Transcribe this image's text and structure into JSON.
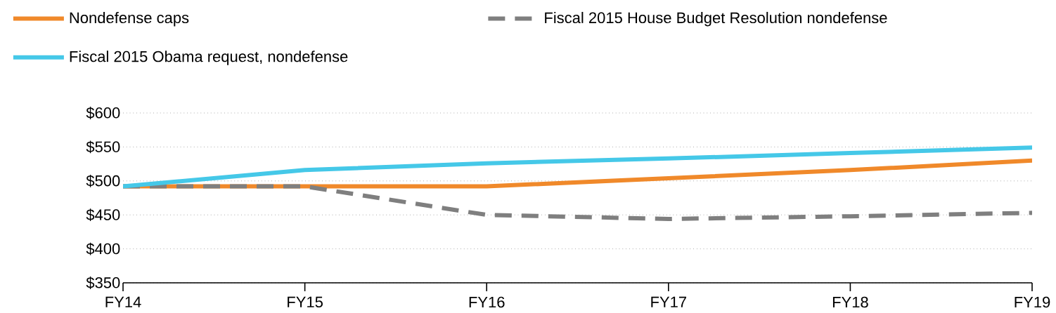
{
  "chart_data": {
    "type": "line",
    "categories": [
      "FY14",
      "FY15",
      "FY16",
      "FY17",
      "FY18",
      "FY19"
    ],
    "series": [
      {
        "name": "Nondefense caps",
        "color": "#f0892a",
        "line_style": "solid",
        "values": [
          492,
          492,
          492,
          504,
          516,
          530
        ]
      },
      {
        "name": "Fiscal 2015 House Budget Resolution nondefense",
        "color": "#7f7f7f",
        "line_style": "dashed",
        "values": [
          492,
          492,
          450,
          444,
          448,
          453
        ]
      },
      {
        "name": "Fiscal 2015 Obama request, nondefense",
        "color": "#45c8e8",
        "line_style": "solid",
        "values": [
          492,
          516,
          526,
          533,
          541,
          549
        ]
      }
    ],
    "ylim": [
      350,
      600
    ],
    "yticks": [
      {
        "value": 350,
        "label": "$350"
      },
      {
        "value": 400,
        "label": "$400"
      },
      {
        "value": 450,
        "label": "$450"
      },
      {
        "value": 500,
        "label": "$500"
      },
      {
        "value": 550,
        "label": "$550"
      },
      {
        "value": 600,
        "label": "$600"
      }
    ],
    "grid": "y",
    "legend": "top",
    "marker": "none"
  }
}
